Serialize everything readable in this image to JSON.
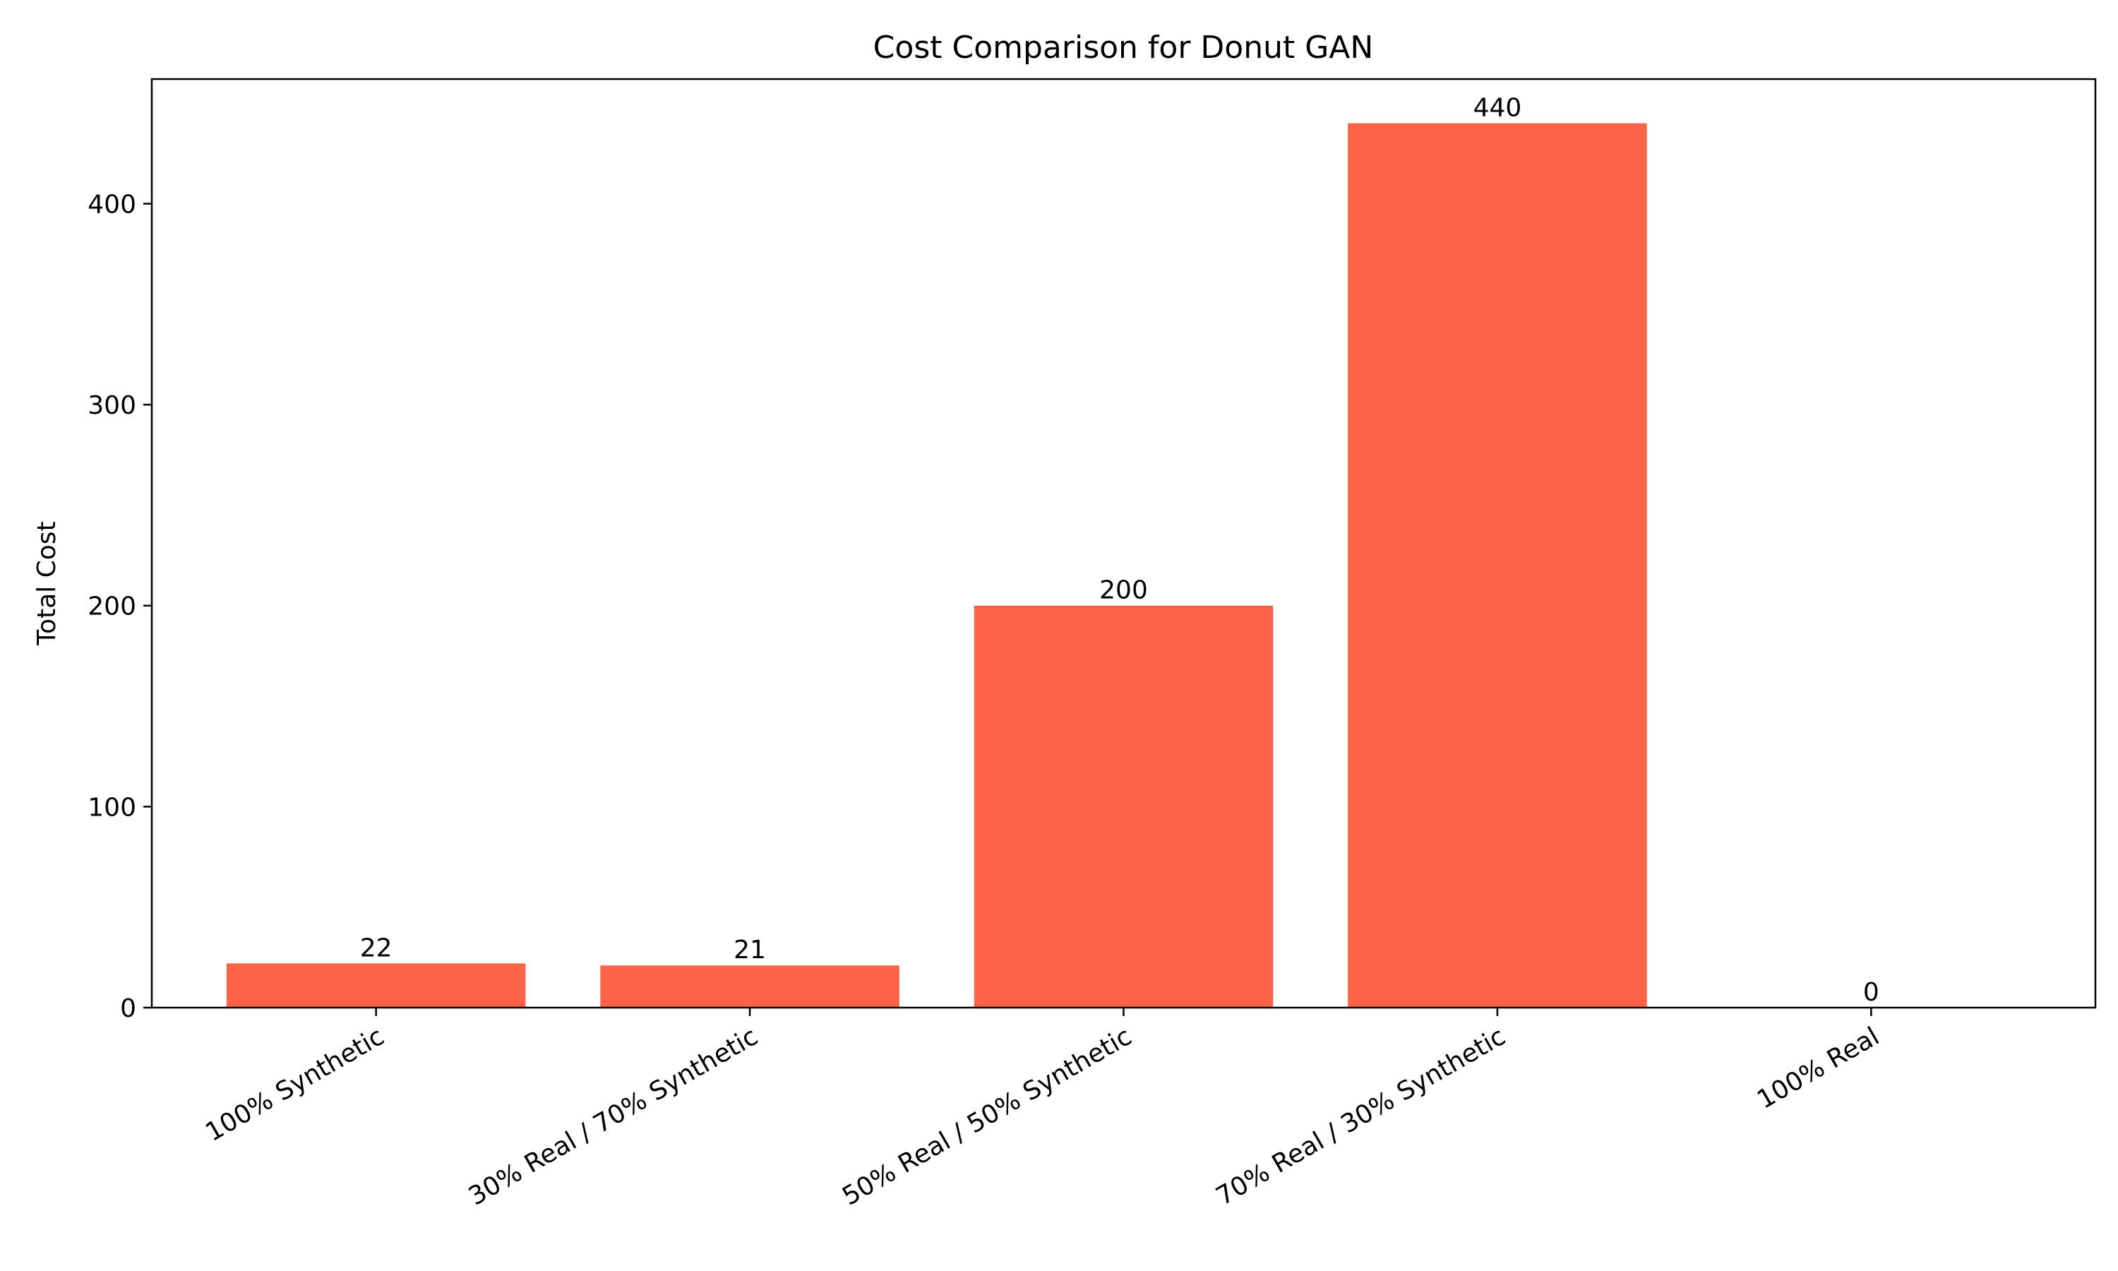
{
  "chart_data": {
    "type": "bar",
    "title": "Cost Comparison for Donut GAN",
    "xlabel": "",
    "ylabel": "Total Cost",
    "categories": [
      "100% Synthetic",
      "30% Real / 70% Synthetic",
      "50% Real / 50% Synthetic",
      "70% Real / 30% Synthetic",
      "100% Real"
    ],
    "values": [
      22,
      21,
      200,
      440,
      0
    ],
    "ylim": [
      0,
      462
    ],
    "yticks": [
      0,
      100,
      200,
      300,
      400
    ],
    "bar_color": "#ff6347",
    "grid": false,
    "legend": "none"
  }
}
